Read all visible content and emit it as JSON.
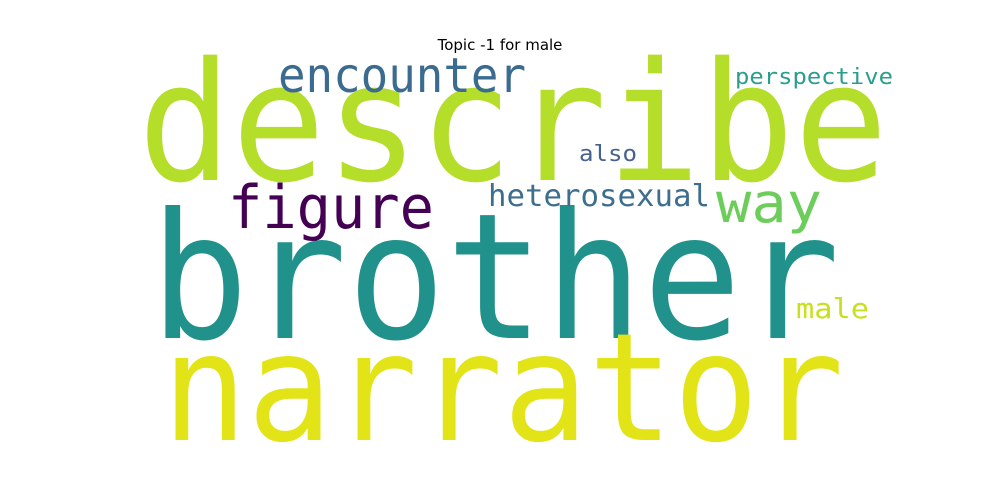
{
  "title": "Topic -1 for male",
  "words": [
    {
      "text": "describe",
      "color": "#b5de2b"
    },
    {
      "text": "brother",
      "color": "#21918c"
    },
    {
      "text": "narrator",
      "color": "#e2e418"
    },
    {
      "text": "encounter",
      "color": "#3b6b8f"
    },
    {
      "text": "figure",
      "color": "#440154"
    },
    {
      "text": "way",
      "color": "#6ccd5a"
    },
    {
      "text": "heterosexual",
      "color": "#3e6e8e"
    },
    {
      "text": "perspective",
      "color": "#2a9d8f"
    },
    {
      "text": "also",
      "color": "#46618e"
    },
    {
      "text": "male",
      "color": "#c8e020"
    }
  ]
}
